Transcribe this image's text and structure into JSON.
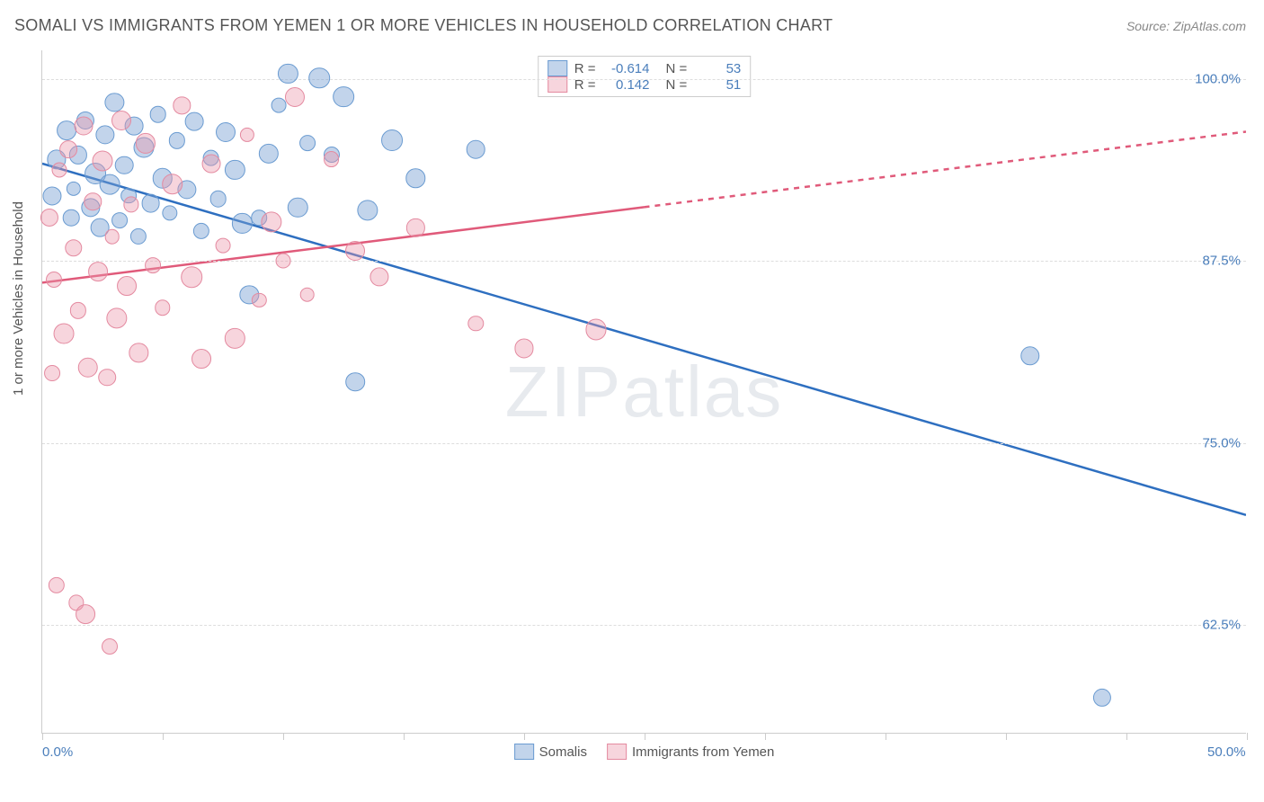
{
  "title": "SOMALI VS IMMIGRANTS FROM YEMEN 1 OR MORE VEHICLES IN HOUSEHOLD CORRELATION CHART",
  "source": "Source: ZipAtlas.com",
  "watermark": "ZIPatlas",
  "ylabel": "1 or more Vehicles in Household",
  "chart": {
    "type": "scatter",
    "xlim": [
      0,
      50
    ],
    "ylim": [
      55,
      102
    ],
    "xtick_labels": {
      "0": "0.0%",
      "50": "50.0%"
    },
    "xtick_positions": [
      0,
      5,
      10,
      15,
      20,
      25,
      30,
      35,
      40,
      45,
      50
    ],
    "ytick_positions": [
      62.5,
      75.0,
      87.5,
      100.0
    ],
    "ytick_labels": [
      "62.5%",
      "75.0%",
      "87.5%",
      "100.0%"
    ],
    "grid_color": "#dddddd",
    "axis_color": "#cccccc",
    "background_color": "#ffffff",
    "tick_label_color": "#4a7ebb"
  },
  "series": [
    {
      "name": "Somalis",
      "color_fill": "rgba(120,160,210,0.45)",
      "color_stroke": "#6a9bd1",
      "trend_color": "#2e6fc0",
      "trend_dash_extrapolate": false,
      "R": "-0.614",
      "N": "53",
      "trend": {
        "x1": 0,
        "y1": 94.2,
        "x2": 50,
        "y2": 70.0
      },
      "points": [
        [
          0.4,
          92
        ],
        [
          0.6,
          94.5
        ],
        [
          1,
          96.5
        ],
        [
          1.2,
          90.5
        ],
        [
          1.3,
          92.5
        ],
        [
          1.5,
          94.8
        ],
        [
          1.8,
          97.2
        ],
        [
          2,
          91.2
        ],
        [
          2.2,
          93.5
        ],
        [
          2.4,
          89.8
        ],
        [
          2.6,
          96.2
        ],
        [
          2.8,
          92.8
        ],
        [
          3,
          98.4
        ],
        [
          3.2,
          90.3
        ],
        [
          3.4,
          94.1
        ],
        [
          3.6,
          92
        ],
        [
          3.8,
          96.8
        ],
        [
          4,
          89.2
        ],
        [
          4.2,
          95.3
        ],
        [
          4.5,
          91.5
        ],
        [
          4.8,
          97.6
        ],
        [
          5,
          93.2
        ],
        [
          5.3,
          90.8
        ],
        [
          5.6,
          95.8
        ],
        [
          6,
          92.4
        ],
        [
          6.3,
          97.1
        ],
        [
          6.6,
          89.6
        ],
        [
          7,
          94.6
        ],
        [
          7.3,
          91.8
        ],
        [
          7.6,
          96.4
        ],
        [
          8,
          93.8
        ],
        [
          8.3,
          90.1
        ],
        [
          8.6,
          85.2
        ],
        [
          9,
          90.5
        ],
        [
          9.4,
          94.9
        ],
        [
          9.8,
          98.2
        ],
        [
          10.2,
          100.4
        ],
        [
          10.6,
          91.2
        ],
        [
          11,
          95.6
        ],
        [
          11.5,
          100.1
        ],
        [
          12,
          94.8
        ],
        [
          12.5,
          98.8
        ],
        [
          13,
          79.2
        ],
        [
          13.5,
          91
        ],
        [
          14.5,
          95.8
        ],
        [
          15.5,
          93.2
        ],
        [
          18,
          95.2
        ],
        [
          41,
          81.0
        ],
        [
          44,
          57.5
        ]
      ]
    },
    {
      "name": "Immigrants from Yemen",
      "color_fill": "rgba(235,150,170,0.40)",
      "color_stroke": "#e48aa0",
      "trend_color": "#e05a7a",
      "trend_dash_extrapolate": true,
      "R": "0.142",
      "N": "51",
      "trend_solid": {
        "x1": 0,
        "y1": 86.0,
        "x2": 25,
        "y2": 91.2
      },
      "trend_dash": {
        "x1": 25,
        "y1": 91.2,
        "x2": 50,
        "y2": 96.4
      },
      "points": [
        [
          0.3,
          90.5
        ],
        [
          0.5,
          86.2
        ],
        [
          0.7,
          93.8
        ],
        [
          0.9,
          82.5
        ],
        [
          1.1,
          95.2
        ],
        [
          1.3,
          88.4
        ],
        [
          1.5,
          84.1
        ],
        [
          1.7,
          96.8
        ],
        [
          1.9,
          80.2
        ],
        [
          2.1,
          91.6
        ],
        [
          2.3,
          86.8
        ],
        [
          2.5,
          94.4
        ],
        [
          2.7,
          79.5
        ],
        [
          2.9,
          89.2
        ],
        [
          3.1,
          83.6
        ],
        [
          3.3,
          97.2
        ],
        [
          3.5,
          85.8
        ],
        [
          3.7,
          91.4
        ],
        [
          4,
          81.2
        ],
        [
          4.3,
          95.6
        ],
        [
          4.6,
          87.2
        ],
        [
          5,
          84.3
        ],
        [
          5.4,
          92.8
        ],
        [
          5.8,
          98.2
        ],
        [
          6.2,
          86.4
        ],
        [
          6.6,
          80.8
        ],
        [
          7,
          94.2
        ],
        [
          7.5,
          88.6
        ],
        [
          8,
          82.2
        ],
        [
          8.5,
          96.2
        ],
        [
          9,
          84.8
        ],
        [
          9.5,
          90.2
        ],
        [
          10,
          87.5
        ],
        [
          10.5,
          98.8
        ],
        [
          11,
          85.2
        ],
        [
          12,
          94.5
        ],
        [
          13,
          88.2
        ],
        [
          14,
          86.4
        ],
        [
          15.5,
          89.8
        ],
        [
          18,
          83.2
        ],
        [
          20,
          81.5
        ],
        [
          23,
          82.8
        ],
        [
          0.6,
          65.2
        ],
        [
          1.4,
          64.0
        ],
        [
          1.8,
          63.2
        ],
        [
          2.8,
          61.0
        ],
        [
          0.4,
          79.8
        ]
      ]
    }
  ],
  "stats_legend": {
    "rows": [
      {
        "swatch_fill": "rgba(120,160,210,0.45)",
        "swatch_stroke": "#6a9bd1",
        "R_label": "R =",
        "R": "-0.614",
        "N_label": "N =",
        "N": "53"
      },
      {
        "swatch_fill": "rgba(235,150,170,0.40)",
        "swatch_stroke": "#e48aa0",
        "R_label": "R =",
        "R": "0.142",
        "N_label": "N =",
        "N": "51"
      }
    ]
  },
  "bottom_legend": [
    {
      "fill": "rgba(120,160,210,0.45)",
      "stroke": "#6a9bd1",
      "label": "Somalis"
    },
    {
      "fill": "rgba(235,150,170,0.40)",
      "stroke": "#e48aa0",
      "label": "Immigrants from Yemen"
    }
  ]
}
